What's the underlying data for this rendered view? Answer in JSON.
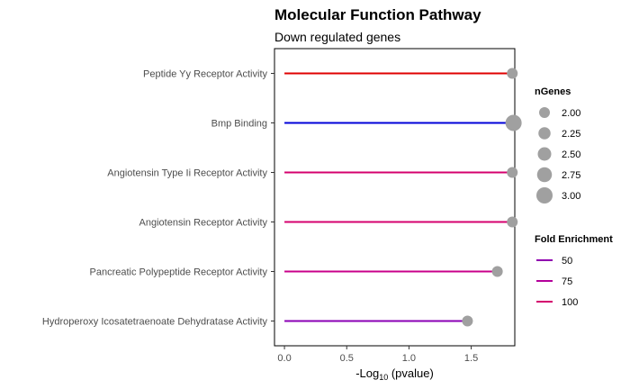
{
  "chart_data": {
    "type": "lollipop",
    "title": "Molecular Function Pathway",
    "subtitle": "Down regulated genes",
    "xlabel": {
      "prefix": "-Log",
      "subscript": "10",
      "suffix": " (pvalue)"
    },
    "xlim": [
      -0.08,
      1.85
    ],
    "xticks": [
      0.0,
      0.5,
      1.0,
      1.5
    ],
    "xtick_labels": [
      "0.0",
      "0.5",
      "1.0",
      "1.5"
    ],
    "grid": false,
    "categories": [
      "Peptide Yy Receptor Activity",
      "Bmp Binding",
      "Angiotensin Type Ii Receptor Activity",
      "Angiotensin Receptor Activity",
      "Pancreatic Polypeptide Receptor Activity",
      "Hydroperoxy Icosatetraenoate Dehydratase Activity"
    ],
    "values": [
      1.83,
      1.84,
      1.83,
      1.83,
      1.71,
      1.47
    ],
    "n_genes": [
      2,
      3,
      2,
      2,
      2,
      2
    ],
    "fold_enrichment": [
      125,
      5,
      95,
      95,
      80,
      45
    ],
    "line_colors": [
      "#e00000",
      "#0000d8",
      "#d4006e",
      "#d4006e",
      "#c8008a",
      "#8a00b4"
    ],
    "point_color": "#a0a0a0",
    "legend_position": "right",
    "size_legend": {
      "title": "nGenes",
      "labels": [
        "2.00",
        "2.25",
        "2.50",
        "2.75",
        "3.00"
      ],
      "values": [
        2.0,
        2.25,
        2.5,
        2.75,
        3.0
      ]
    },
    "color_legend": {
      "title": "Fold Enrichment",
      "labels": [
        "50",
        "75",
        "100"
      ],
      "colors": [
        "#9000b0",
        "#b4009a",
        "#d4006e"
      ]
    }
  }
}
